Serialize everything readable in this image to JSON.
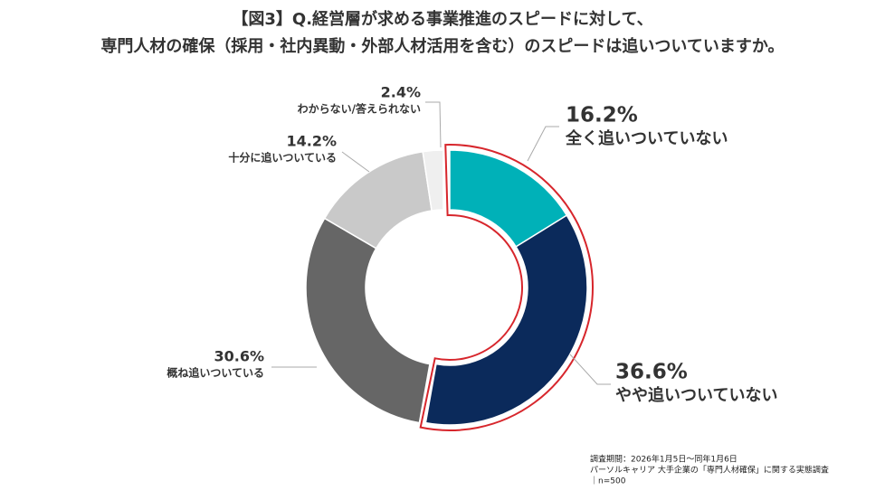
{
  "chart_data": {
    "type": "donut",
    "title": [
      "【図3】Q.経営層が求める事業推進のスピードに対して、",
      "専門人材の確保（採用・社内異動・外部人材活用を含む）のスピードは追いついていますか。"
    ],
    "categories": [
      "全く追いついていない",
      "やや追いついていない",
      "概ね追いついている",
      "十分に追いついている",
      "わからない/答えられない"
    ],
    "values": [
      16.2,
      36.6,
      30.6,
      14.2,
      2.4
    ],
    "value_labels": [
      "16.2%",
      "36.6%",
      "30.6%",
      "14.2%",
      "2.4%"
    ],
    "colors": [
      "#00b1b8",
      "#0b2a5b",
      "#666666",
      "#c9c9c9",
      "#efefef"
    ],
    "notes": [
      "調査期間：2026年1月5日～同年1月6日",
      "パーソルキャリア 大手企業の「専門人材確保」に関する実態調査",
      "｜n=500"
    ]
  }
}
